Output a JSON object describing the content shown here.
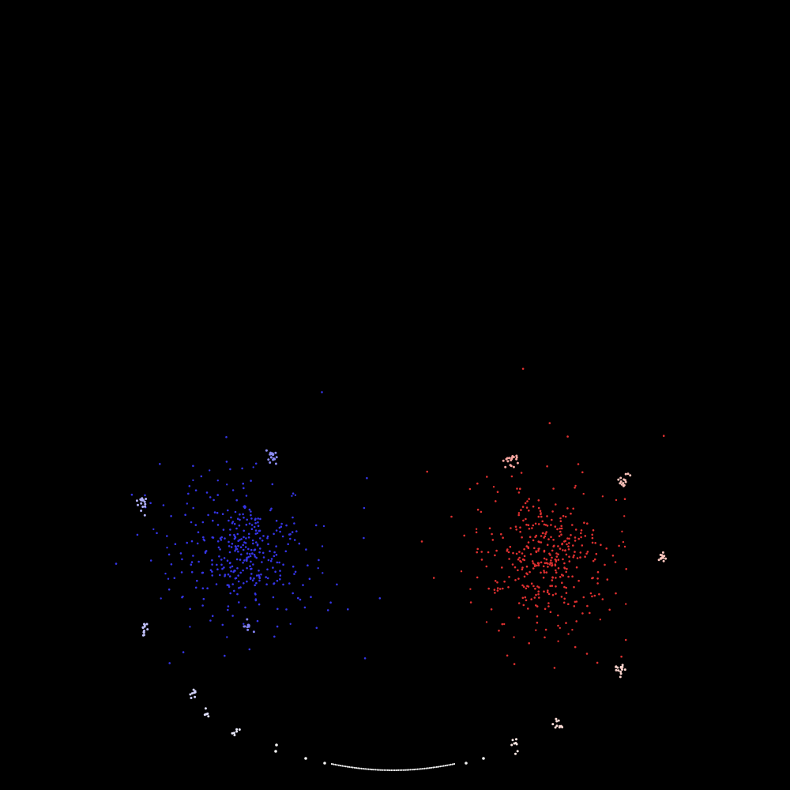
{
  "background_color": "#000000",
  "clusters": [
    {
      "name": "left-core-cluster",
      "color": "#3535e6",
      "count": 360,
      "spread": 44
    },
    {
      "name": "right-core-cluster",
      "color": "#e03030",
      "count": 380,
      "spread": 42
    },
    {
      "name": "left-satellite-top",
      "color": "#8c8cf5",
      "count": 18,
      "spread": 4
    },
    {
      "name": "left-satellite-upper-left",
      "color": "#b0b0f8",
      "count": 16,
      "spread": 4
    },
    {
      "name": "left-satellite-lower-left",
      "color": "#c2c2fa",
      "count": 12,
      "spread": 3
    },
    {
      "name": "left-satellite-bottom",
      "color": "#8080f0",
      "count": 10,
      "spread": 3
    },
    {
      "name": "right-satellite-top",
      "color": "#f7a6a0",
      "count": 18,
      "spread": 4
    },
    {
      "name": "right-satellite-upper-right",
      "color": "#f9c0b8",
      "count": 14,
      "spread": 4
    },
    {
      "name": "right-satellite-right",
      "color": "#f9c4bc",
      "count": 14,
      "spread": 3
    },
    {
      "name": "right-satellite-lower-right",
      "color": "#fbd3cc",
      "count": 16,
      "spread": 4
    },
    {
      "name": "right-satellite-bottom",
      "color": "#fcdcd6",
      "count": 10,
      "spread": 3
    },
    {
      "name": "right-satellite-bottom-2",
      "color": "#fde8e4",
      "count": 8,
      "spread": 3
    },
    {
      "name": "left-satellite-bottom-2",
      "color": "#d0d0fa",
      "count": 8,
      "spread": 3
    },
    {
      "name": "left-satellite-bottom-3",
      "color": "#e0e0fc",
      "count": 6,
      "spread": 2
    },
    {
      "name": "left-satellite-bottom-4",
      "color": "#ececfd",
      "count": 6,
      "spread": 2
    }
  ],
  "arc_color": "#f2f2f2"
}
